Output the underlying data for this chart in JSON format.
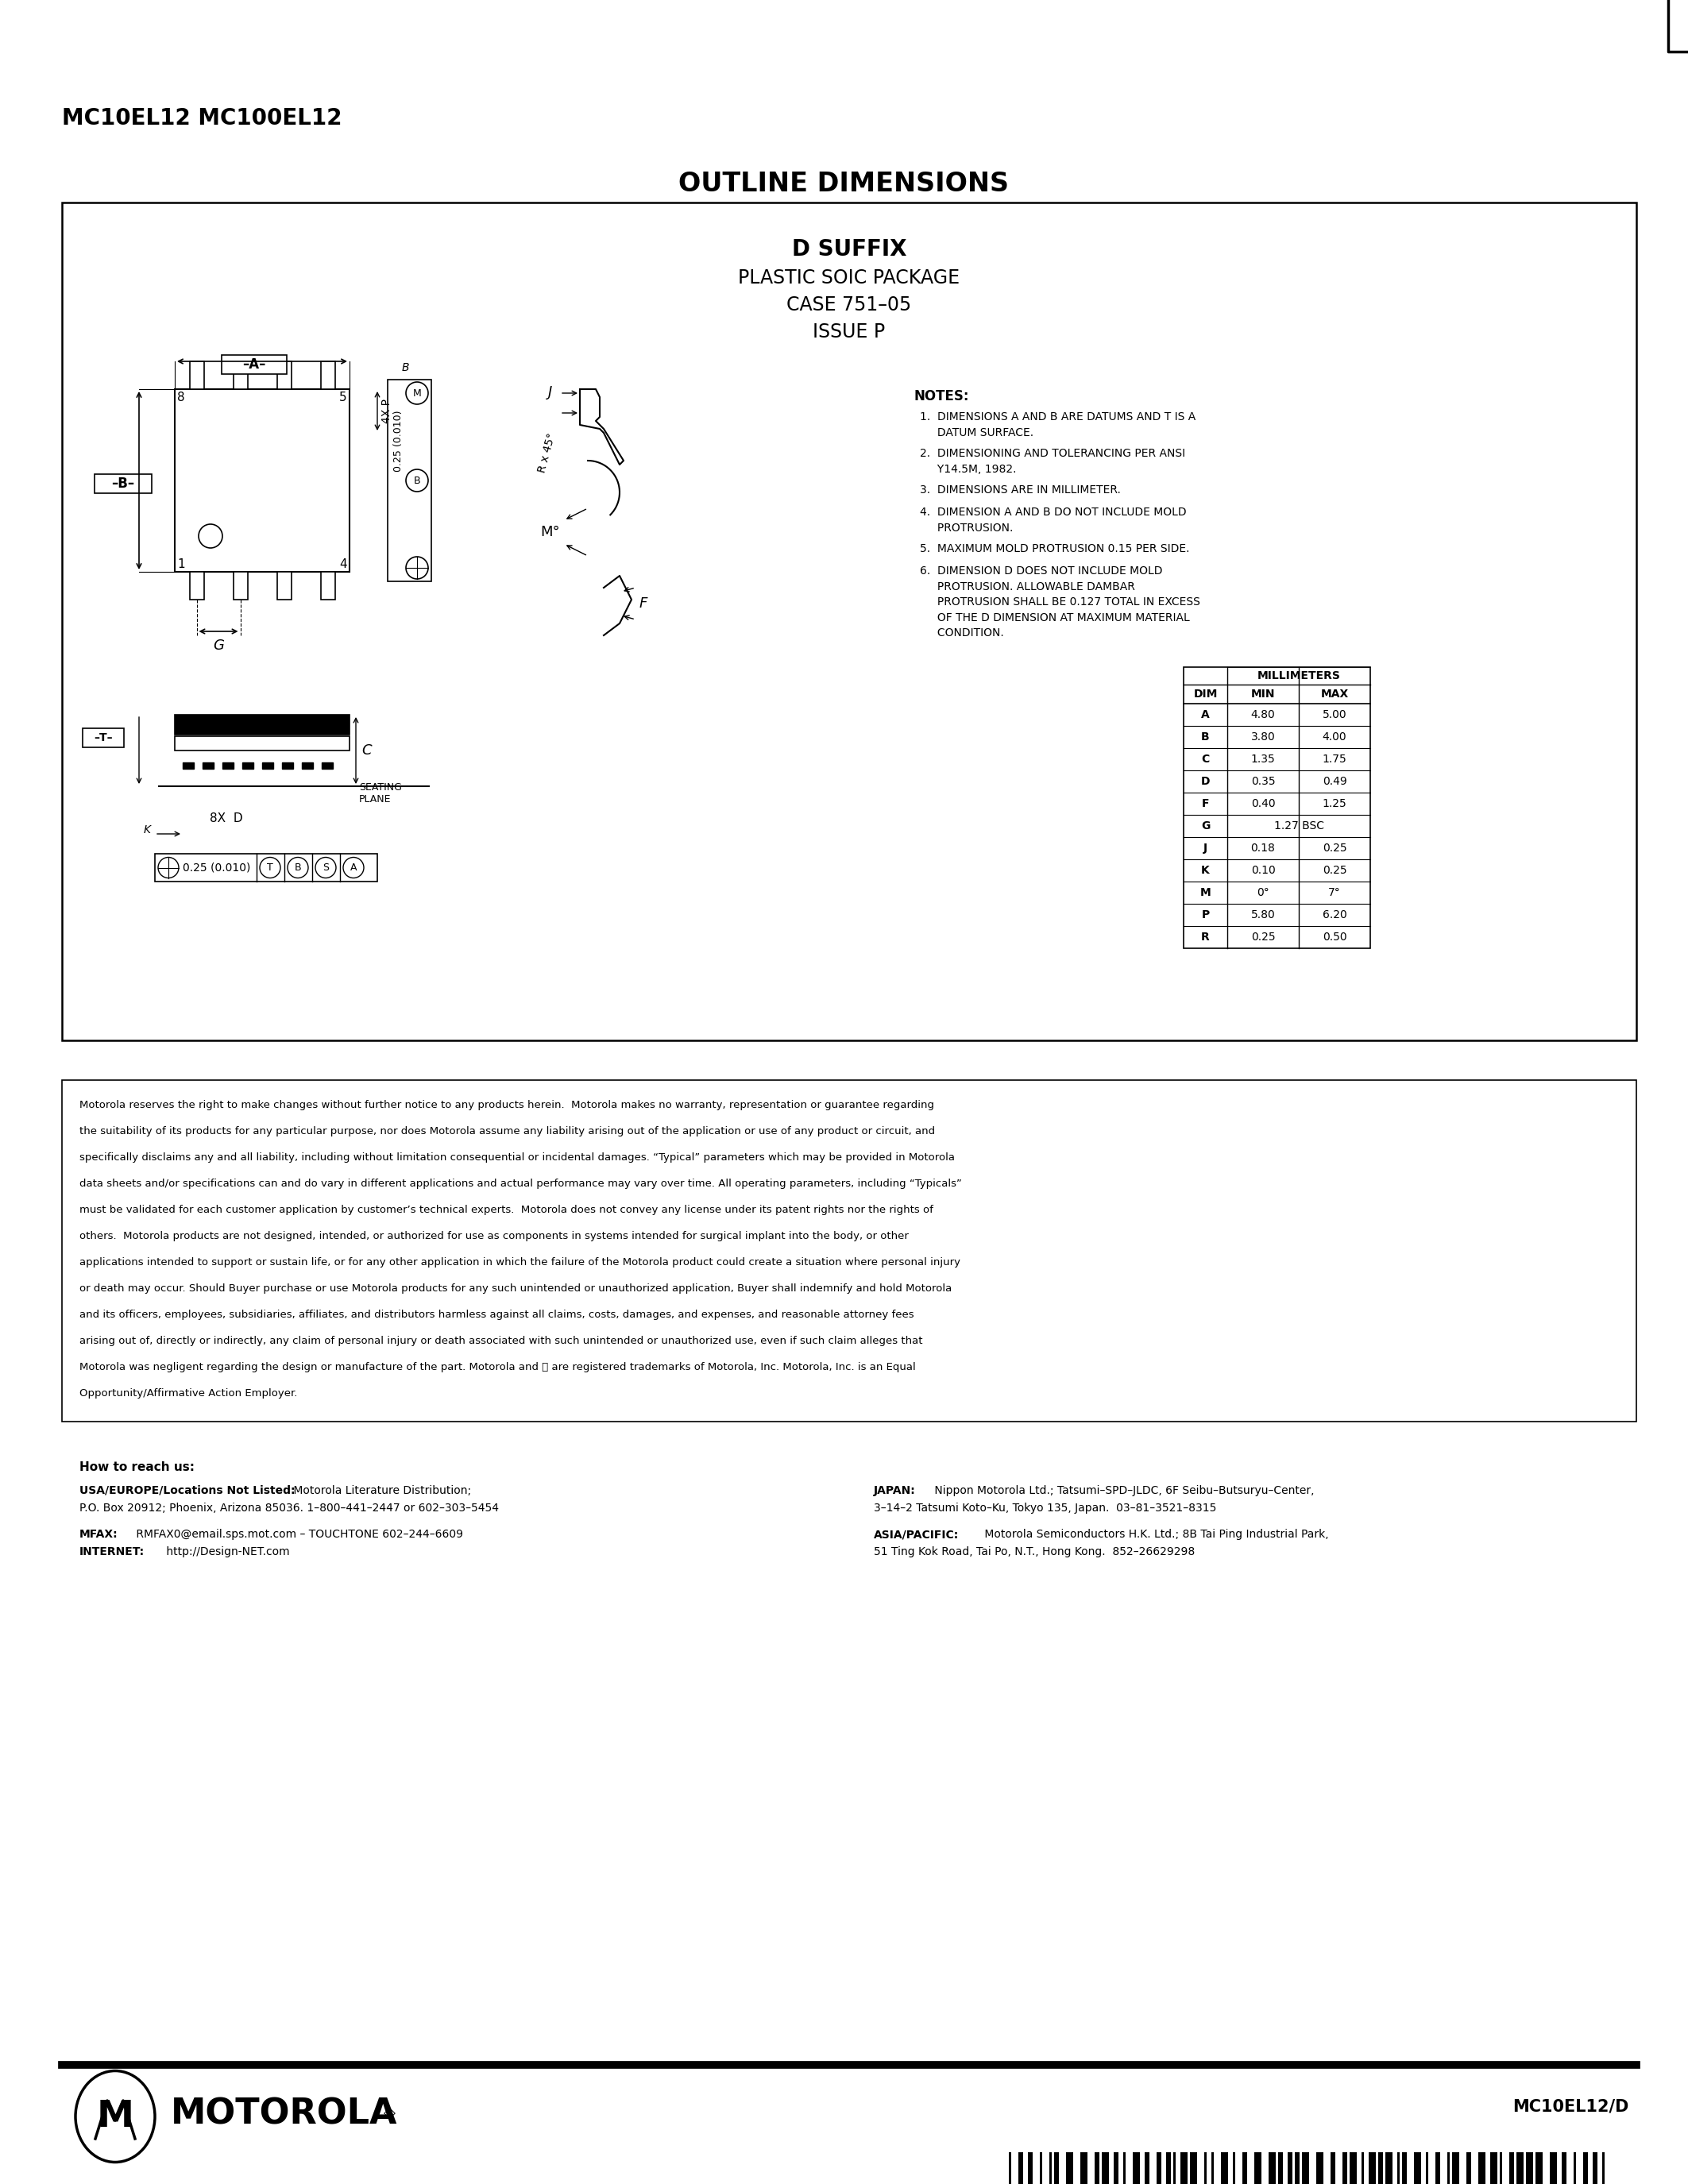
{
  "page_title": "MC10EL12 MC100EL12",
  "section_title": "OUTLINE DIMENSIONS",
  "box_title_line1": "D SUFFIX",
  "box_title_line2": "PLASTIC SOIC PACKAGE",
  "box_title_line3": "CASE 751–05",
  "box_title_line4": "ISSUE P",
  "notes_title": "NOTES:",
  "notes": [
    "1.  DIMENSIONS A AND B ARE DATUMS AND T IS A\n     DATUM SURFACE.",
    "2.  DIMENSIONING AND TOLERANCING PER ANSI\n     Y14.5M, 1982.",
    "3.  DIMENSIONS ARE IN MILLIMETER.",
    "4.  DIMENSION A AND B DO NOT INCLUDE MOLD\n     PROTRUSION.",
    "5.  MAXIMUM MOLD PROTRUSION 0.15 PER SIDE.",
    "6.  DIMENSION D DOES NOT INCLUDE MOLD\n     PROTRUSION. ALLOWABLE DAMBAR\n     PROTRUSION SHALL BE 0.127 TOTAL IN EXCESS\n     OF THE D DIMENSION AT MAXIMUM MATERIAL\n     CONDITION."
  ],
  "table_header": [
    "DIM",
    "MIN",
    "MAX"
  ],
  "table_subheader": "MILLIMETERS",
  "table_rows": [
    [
      "A",
      "4.80",
      "5.00"
    ],
    [
      "B",
      "3.80",
      "4.00"
    ],
    [
      "C",
      "1.35",
      "1.75"
    ],
    [
      "D",
      "0.35",
      "0.49"
    ],
    [
      "F",
      "0.40",
      "1.25"
    ],
    [
      "G",
      "1.27 BSC",
      ""
    ],
    [
      "J",
      "0.18",
      "0.25"
    ],
    [
      "K",
      "0.10",
      "0.25"
    ],
    [
      "M",
      "0°",
      "7°"
    ],
    [
      "P",
      "5.80",
      "6.20"
    ],
    [
      "R",
      "0.25",
      "0.50"
    ]
  ],
  "legal_text": "Motorola reserves the right to make changes without further notice to any products herein.  Motorola makes no warranty, representation or guarantee regarding\nthe suitability of its products for any particular purpose, nor does Motorola assume any liability arising out of the application or use of any product or circuit, and\nspecifically disclaims any and all liability, including without limitation consequential or incidental damages. “Typical” parameters which may be provided in Motorola\ndata sheets and/or specifications can and do vary in different applications and actual performance may vary over time. All operating parameters, including “Typicals”\nmust be validated for each customer application by customer’s technical experts.  Motorola does not convey any license under its patent rights nor the rights of\nothers.  Motorola products are not designed, intended, or authorized for use as components in systems intended for surgical implant into the body, or other\napplications intended to support or sustain life, or for any other application in which the failure of the Motorola product could create a situation where personal injury\nor death may occur. Should Buyer purchase or use Motorola products for any such unintended or unauthorized application, Buyer shall indemnify and hold Motorola\nand its officers, employees, subsidiaries, affiliates, and distributors harmless against all claims, costs, damages, and expenses, and reasonable attorney fees\narising out of, directly or indirectly, any claim of personal injury or death associated with such unintended or unauthorized use, even if such claim alleges that\nMotorola was negligent regarding the design or manufacture of the part. Motorola and Ⓜ are registered trademarks of Motorola, Inc. Motorola, Inc. is an Equal\nOpportunity/Affirmative Action Employer.",
  "contact_title": "How to reach us:",
  "contact_usa_bold": "USA/EUROPE/Locations Not Listed:",
  "contact_usa_rest": " Motorola Literature Distribution;",
  "contact_usa_line2": "P.O. Box 20912; Phoenix, Arizona 85036. 1–800–441–2447 or 602–303–5454",
  "contact_japan_bold": "JAPAN:",
  "contact_japan_rest": " Nippon Motorola Ltd.; Tatsumi–SPD–JLDC, 6F Seibu–Butsuryu–Center,",
  "contact_japan_line2": "3–14–2 Tatsumi Koto–Ku, Tokyo 135, Japan.  03–81–3521–8315",
  "contact_mfax_bold": "MFAX:",
  "contact_mfax_rest": " RMFAX0@email.sps.mot.com – TOUCHTONE 602–244–6609",
  "contact_internet_bold": "INTERNET:",
  "contact_internet_rest": " http://Design-NET.com",
  "contact_asia_bold": "ASIA/PACIFIC:",
  "contact_asia_rest": " Motorola Semiconductors H.K. Ltd.; 8B Tai Ping Industrial Park,",
  "contact_asia_line2": "51 Ting Kok Road, Tai Po, N.T., Hong Kong.  852–26629298",
  "part_number": "MC10EL12/D",
  "background_color": "#ffffff",
  "text_color": "#000000",
  "box_border_color": "#000000"
}
